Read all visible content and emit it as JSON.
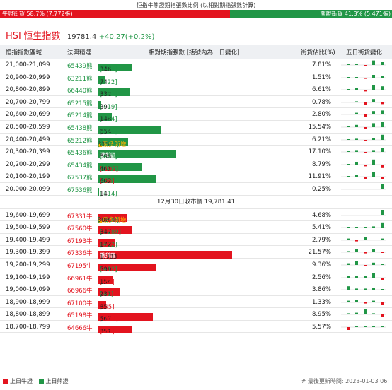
{
  "title": "恒指牛熊證期指張數比例 (以相對期指張數計算)",
  "ratio": {
    "bull_label": "牛證街貨 58.7% (7,772張)",
    "bear_label": "熊證街貨 41.3% (5,471張)",
    "bull_pct": 58.7
  },
  "hsi": {
    "code": "HSI",
    "name": "恒生指數",
    "price": "19781.4",
    "change": "+40.27(+0.2%)"
  },
  "headers": {
    "range": "恒指指數區域",
    "code": "法興精選",
    "contracts": "相對期指張數 [括號內為一日變化]",
    "pct": "街貨佔比(%)",
    "five_day": "五日街貨變化"
  },
  "hot_label": "▲最多新增",
  "heavy_label": "重貨區",
  "close_label": "12月30日收市價 19,781.41",
  "colors": {
    "bull": "#e3141f",
    "bear": "#219646"
  },
  "bear_rows": [
    {
      "range": "21,000-21,099",
      "code": "65439熊",
      "value": 346,
      "value_text": "346",
      "change": "[+39]",
      "pct": "7.81%",
      "hot": false,
      "heavy": false,
      "spark": [
        0.1,
        0.2,
        -0.1,
        0.8,
        0.5
      ]
    },
    {
      "range": "20,900-20,999",
      "code": "63211熊",
      "value": 74,
      "value_text": "74",
      "change": "[+22]",
      "pct": "1.51%",
      "hot": false,
      "heavy": false,
      "spark": [
        0.05,
        0.1,
        -0.2,
        0.5,
        0.3
      ]
    },
    {
      "range": "20,800-20,899",
      "code": "66440熊",
      "value": 332,
      "value_text": "332",
      "change": "[+77]",
      "pct": "6.61%",
      "hot": false,
      "heavy": false,
      "spark": [
        0.1,
        0.3,
        -0.3,
        0.8,
        0.6
      ]
    },
    {
      "range": "20,700-20,799",
      "code": "65215熊",
      "value": 39,
      "value_text": "39",
      "change": "[+19]",
      "pct": "0.78%",
      "hot": false,
      "heavy": false,
      "spark": [
        0.05,
        0.2,
        -0.4,
        0.6,
        -0.3
      ]
    },
    {
      "range": "20,600-20,699",
      "code": "65214熊",
      "value": 148,
      "value_text": "148",
      "change": "[+54]",
      "pct": "2.80%",
      "hot": false,
      "heavy": false,
      "spark": [
        0.1,
        0.3,
        -0.5,
        0.6,
        0.7
      ]
    },
    {
      "range": "20,500-20,599",
      "code": "65438熊",
      "value": 654,
      "value_text": "654",
      "change": "[+23]",
      "pct": "15.54%",
      "hot": false,
      "heavy": false,
      "spark": [
        0.1,
        0.4,
        -0.3,
        0.7,
        1.0
      ]
    },
    {
      "range": "20,400-20,499",
      "code": "65212熊",
      "value": 315,
      "value_text": "315",
      "change": "[+110]",
      "pct": "6.21%",
      "hot": true,
      "heavy": false,
      "spark": [
        0.1,
        0.2,
        -0.2,
        0.3,
        0.9
      ]
    },
    {
      "range": "20,300-20,399",
      "code": "65436熊",
      "value": 808,
      "value_text": "808",
      "change": "[+13]",
      "pct": "17.10%",
      "hot": false,
      "heavy": true,
      "spark": [
        0.05,
        0.2,
        -0.1,
        0.2,
        0.7
      ]
    },
    {
      "range": "20,200-20,299",
      "code": "65434熊",
      "value": 461,
      "value_text": "461",
      "change": "[-192]",
      "pct": "8.79%",
      "hot": false,
      "heavy": false,
      "spark": [
        0.1,
        0.5,
        -0.3,
        0.9,
        -0.6
      ]
    },
    {
      "range": "20,100-20,199",
      "code": "67537熊",
      "value": 602,
      "value_text": "602",
      "change": "[-56]",
      "pct": "11.91%",
      "hot": false,
      "heavy": false,
      "spark": [
        0.05,
        0.3,
        -0.4,
        0.8,
        -0.5
      ]
    },
    {
      "range": "20,000-20,099",
      "code": "67536熊",
      "value": 14,
      "value_text": "14",
      "change": "[+14]",
      "pct": "0.25%",
      "hot": false,
      "heavy": false,
      "spark": [
        0,
        0,
        0,
        0,
        0.9
      ]
    }
  ],
  "bull_rows": [
    {
      "range": "19,600-19,699",
      "code": "67331牛",
      "value": 300,
      "value_text": "300",
      "change": "[+300]",
      "pct": "4.68%",
      "hot": true,
      "heavy": false,
      "spark": [
        0,
        0,
        0,
        0,
        1.0
      ]
    },
    {
      "range": "19,500-19,599",
      "code": "67560牛",
      "value": 347,
      "value_text": "347",
      "change": "[+289]",
      "pct": "5.41%",
      "hot": false,
      "heavy": false,
      "spark": [
        0,
        0,
        0,
        0.2,
        0.9
      ]
    },
    {
      "range": "19,400-19,499",
      "code": "67193牛",
      "value": 172,
      "value_text": "172",
      "change": "[+32]",
      "pct": "2.79%",
      "hot": false,
      "heavy": false,
      "spark": [
        0.3,
        -0.2,
        0.5,
        0.1,
        0.3
      ]
    },
    {
      "range": "19,300-19,399",
      "code": "67336牛",
      "value": 1383,
      "value_text": "1,383",
      "change": "[-9]",
      "pct": "21.57%",
      "hot": false,
      "heavy": true,
      "spark": [
        0.2,
        0.6,
        -0.2,
        0.5,
        -0.1
      ]
    },
    {
      "range": "19,200-19,299",
      "code": "67195牛",
      "value": 599,
      "value_text": "599",
      "change": "[+12]",
      "pct": "9.36%",
      "hot": false,
      "heavy": false,
      "spark": [
        0.3,
        0.7,
        -0.2,
        0.4,
        0.2
      ]
    },
    {
      "range": "19,100-19,199",
      "code": "66961牛",
      "value": 154,
      "value_text": "154",
      "change": "[-87]",
      "pct": "2.56%",
      "hot": false,
      "heavy": false,
      "spark": [
        0.3,
        0.3,
        0.3,
        0.8,
        -0.5
      ]
    },
    {
      "range": "19,000-19,099",
      "code": "66966牛",
      "value": 231,
      "value_text": "231",
      "change": "[+2]",
      "pct": "3.86%",
      "hot": false,
      "heavy": false,
      "spark": [
        0.6,
        0.2,
        0.2,
        0.3,
        0.1
      ]
    },
    {
      "range": "18,900-18,999",
      "code": "67100牛",
      "value": 85,
      "value_text": "85",
      "change": "[-45]",
      "pct": "1.33%",
      "hot": false,
      "heavy": false,
      "spark": [
        0.3,
        0.5,
        -0.2,
        0.3,
        -0.4
      ]
    },
    {
      "range": "18,800-18,899",
      "code": "65198牛",
      "value": 567,
      "value_text": "567",
      "change": "[-123]",
      "pct": "8.95%",
      "hot": false,
      "heavy": false,
      "spark": [
        0.2,
        0.3,
        0.9,
        0.2,
        -0.5
      ]
    },
    {
      "range": "18,700-18,799",
      "code": "64666牛",
      "value": 351,
      "value_text": "351",
      "change": "[-44]",
      "pct": "5.57%",
      "hot": false,
      "heavy": false,
      "spark": [
        -0.5,
        0,
        0,
        0,
        0
      ]
    }
  ],
  "legend": {
    "bull": "上日牛證",
    "bear": "上日熊證"
  },
  "update": "# 最後更新時間: 2023-01-03 06:"
}
